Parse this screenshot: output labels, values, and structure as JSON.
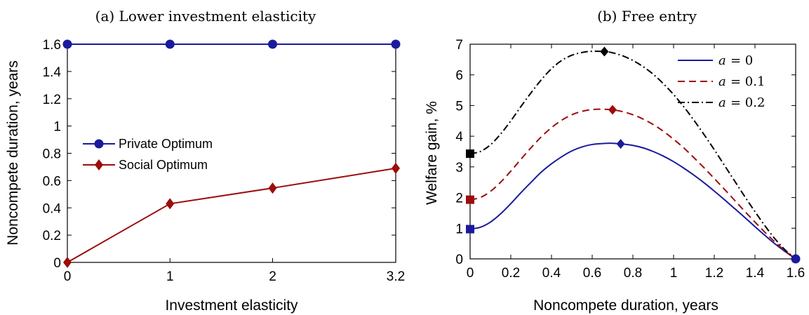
{
  "chart_data": [
    {
      "type": "line",
      "title": "(a) Lower investment elasticity",
      "xlabel": "Investment elasticity",
      "ylabel": "Noncompete duration, years",
      "x": [
        0,
        1,
        2,
        3.2
      ],
      "xticks": [
        0,
        1,
        2,
        3.2
      ],
      "xtick_labels": [
        "0",
        "1",
        "2",
        "3.2"
      ],
      "xlim": [
        0,
        3.2
      ],
      "yticks": [
        0,
        0.2,
        0.4,
        0.6,
        0.8,
        1,
        1.2,
        1.4,
        1.6
      ],
      "ytick_labels": [
        "0",
        "0.2",
        "0.4",
        "0.6",
        "0.8",
        "1",
        "1.2",
        "1.4",
        "1.6"
      ],
      "ylim": [
        0,
        1.6
      ],
      "grid": false,
      "legend": "center-left",
      "series": [
        {
          "name": "Private Optimum",
          "values": [
            1.6,
            1.6,
            1.6,
            1.6
          ],
          "color": "#1a1a9c",
          "marker": "circle",
          "line": "solid"
        },
        {
          "name": "Social Optimum",
          "values": [
            0.0,
            0.43,
            0.545,
            0.69
          ],
          "color": "#9c0d0d",
          "marker": "diamond",
          "line": "solid"
        }
      ]
    },
    {
      "type": "line",
      "title": "(b) Free entry",
      "xlabel": "Noncompete duration, years",
      "ylabel": "Welfare gain, %",
      "xticks": [
        0,
        0.2,
        0.4,
        0.6,
        0.8,
        1,
        1.2,
        1.4,
        1.6
      ],
      "xtick_labels": [
        "0",
        "0.2",
        "0.4",
        "0.6",
        "0.8",
        "1",
        "1.2",
        "1.4",
        "1.6"
      ],
      "xlim": [
        0,
        1.6
      ],
      "yticks": [
        0,
        1,
        2,
        3,
        4,
        5,
        6,
        7
      ],
      "ytick_labels": [
        "0",
        "1",
        "2",
        "3",
        "4",
        "5",
        "6",
        "7"
      ],
      "ylim": [
        0,
        7
      ],
      "grid": false,
      "legend": "top-right",
      "series": [
        {
          "name": "a = 0",
          "legend_var": "a",
          "legend_val": "= 0",
          "color": "#1a1a9c",
          "line": "solid",
          "x": [
            0,
            0.05,
            0.1,
            0.15,
            0.2,
            0.25,
            0.3,
            0.35,
            0.4,
            0.45,
            0.5,
            0.55,
            0.6,
            0.65,
            0.7,
            0.74,
            0.8,
            0.85,
            0.9,
            0.95,
            1.0,
            1.05,
            1.1,
            1.15,
            1.2,
            1.25,
            1.3,
            1.35,
            1.4,
            1.45,
            1.5,
            1.55,
            1.6
          ],
          "values": [
            0.97,
            1.03,
            1.2,
            1.47,
            1.8,
            2.16,
            2.5,
            2.83,
            3.1,
            3.33,
            3.52,
            3.65,
            3.73,
            3.76,
            3.77,
            3.75,
            3.7,
            3.62,
            3.5,
            3.35,
            3.17,
            2.96,
            2.73,
            2.48,
            2.21,
            1.93,
            1.64,
            1.35,
            1.05,
            0.76,
            0.48,
            0.23,
            0.0
          ],
          "start_marker": {
            "x": 0,
            "y": 0.97,
            "shape": "square"
          },
          "peak_marker": {
            "x": 0.74,
            "y": 3.75,
            "shape": "diamond"
          }
        },
        {
          "name": "a = 0.1",
          "legend_var": "a",
          "legend_val": "= 0.1",
          "color": "#9c0d0d",
          "line": "dashed",
          "x": [
            0,
            0.05,
            0.1,
            0.15,
            0.2,
            0.25,
            0.3,
            0.35,
            0.4,
            0.45,
            0.5,
            0.55,
            0.6,
            0.65,
            0.7,
            0.75,
            0.8,
            0.85,
            0.9,
            0.95,
            1.0,
            1.05,
            1.1,
            1.15,
            1.2,
            1.25,
            1.3,
            1.35,
            1.4,
            1.45,
            1.5,
            1.55,
            1.6
          ],
          "values": [
            1.93,
            2.0,
            2.2,
            2.5,
            2.86,
            3.25,
            3.63,
            3.98,
            4.28,
            4.52,
            4.7,
            4.81,
            4.87,
            4.88,
            4.86,
            4.8,
            4.7,
            4.56,
            4.38,
            4.16,
            3.9,
            3.62,
            3.3,
            2.97,
            2.62,
            2.27,
            1.91,
            1.55,
            1.2,
            0.86,
            0.54,
            0.25,
            0.0
          ],
          "start_marker": {
            "x": 0,
            "y": 1.93,
            "shape": "square"
          },
          "peak_marker": {
            "x": 0.7,
            "y": 4.86,
            "shape": "diamond"
          }
        },
        {
          "name": "a = 0.2",
          "legend_var": "a",
          "legend_val": "= 0.2",
          "color": "#000000",
          "line": "dashdot",
          "x": [
            0,
            0.05,
            0.1,
            0.15,
            0.2,
            0.25,
            0.3,
            0.35,
            0.4,
            0.45,
            0.5,
            0.55,
            0.6,
            0.66,
            0.7,
            0.75,
            0.8,
            0.85,
            0.9,
            0.95,
            1.0,
            1.05,
            1.1,
            1.15,
            1.2,
            1.25,
            1.3,
            1.35,
            1.4,
            1.45,
            1.5,
            1.55,
            1.6
          ],
          "values": [
            3.43,
            3.5,
            3.72,
            4.07,
            4.5,
            4.97,
            5.42,
            5.84,
            6.2,
            6.47,
            6.64,
            6.73,
            6.77,
            6.76,
            6.72,
            6.62,
            6.47,
            6.27,
            6.02,
            5.71,
            5.36,
            4.96,
            4.52,
            4.05,
            3.56,
            3.05,
            2.54,
            2.03,
            1.54,
            1.07,
            0.64,
            0.28,
            0.0
          ],
          "start_marker": {
            "x": 0,
            "y": 3.43,
            "shape": "square"
          },
          "peak_marker": {
            "x": 0.66,
            "y": 6.76,
            "shape": "diamond"
          }
        }
      ],
      "end_marker": {
        "x": 1.6,
        "y": 0,
        "shape": "circle",
        "color": "#1a1a9c"
      }
    }
  ]
}
